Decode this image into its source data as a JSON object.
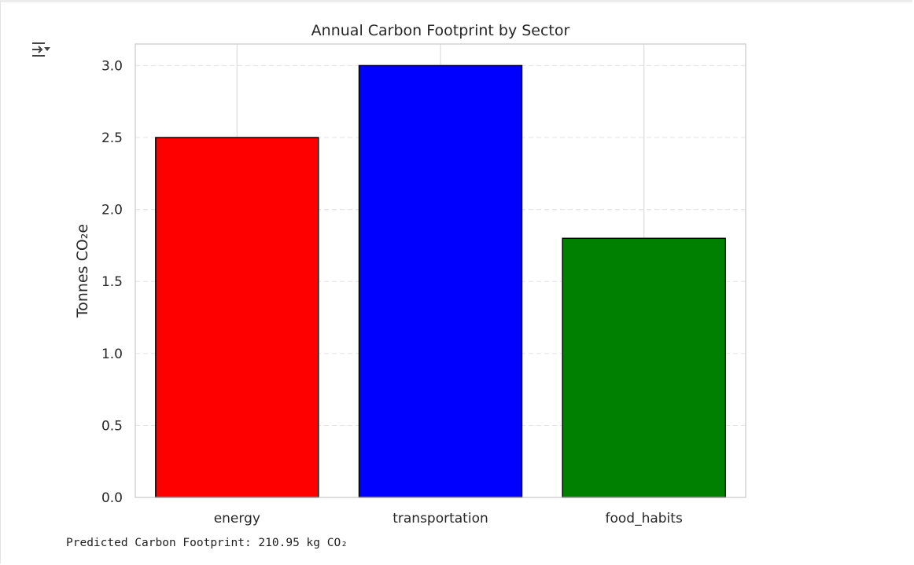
{
  "output": {
    "stdout_text": "Predicted Carbon Footprint: 210.95 kg CO₂",
    "toggle_icon": "output-collapse-icon"
  },
  "chart_data": {
    "type": "bar",
    "title": "Annual Carbon Footprint by Sector",
    "xlabel": "",
    "ylabel": "Tonnes CO₂e",
    "categories": [
      "energy",
      "transportation",
      "food_habits"
    ],
    "values": [
      2.5,
      3.0,
      1.8
    ],
    "colors": [
      "#ff0000",
      "#0000ff",
      "#008000"
    ],
    "edge_color": "#000000",
    "ylim": [
      0,
      3.15
    ],
    "yticks": [
      0.0,
      0.5,
      1.0,
      1.5,
      2.0,
      2.5,
      3.0
    ],
    "ytick_labels": [
      "0.0",
      "0.5",
      "1.0",
      "1.5",
      "2.0",
      "2.5",
      "3.0"
    ],
    "grid": true,
    "grid_style": "y dashed, x solid",
    "legend": "none"
  }
}
